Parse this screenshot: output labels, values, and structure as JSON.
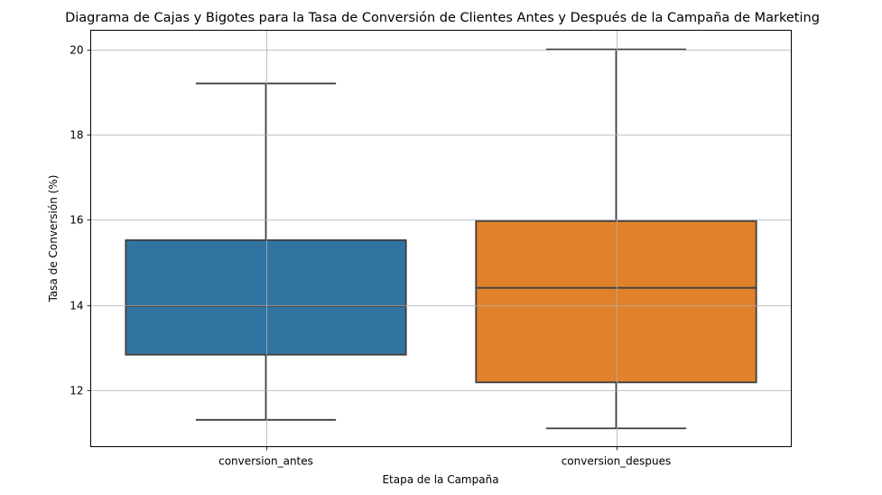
{
  "chart_data": {
    "type": "box",
    "title": "Diagrama de Cajas y Bigotes para la Tasa de Conversión de Clientes Antes y Después de la Campaña de Marketing",
    "xlabel": "Etapa de la Campaña",
    "ylabel": "Tasa de Conversión (%)",
    "ylim": [
      10.67,
      20.45
    ],
    "yticks": [
      12,
      14,
      16,
      18,
      20
    ],
    "grid": true,
    "categories": [
      "conversion_antes",
      "conversion_despues"
    ],
    "boxes": [
      {
        "category": "conversion_antes",
        "whisker_low": 11.3,
        "q1": 12.83,
        "median": 13.97,
        "q3": 15.52,
        "whisker_high": 19.2,
        "color": "#3274a1"
      },
      {
        "category": "conversion_despues",
        "whisker_low": 11.1,
        "q1": 12.18,
        "median": 14.4,
        "q3": 15.97,
        "whisker_high": 20.0,
        "color": "#e1812c"
      }
    ]
  }
}
